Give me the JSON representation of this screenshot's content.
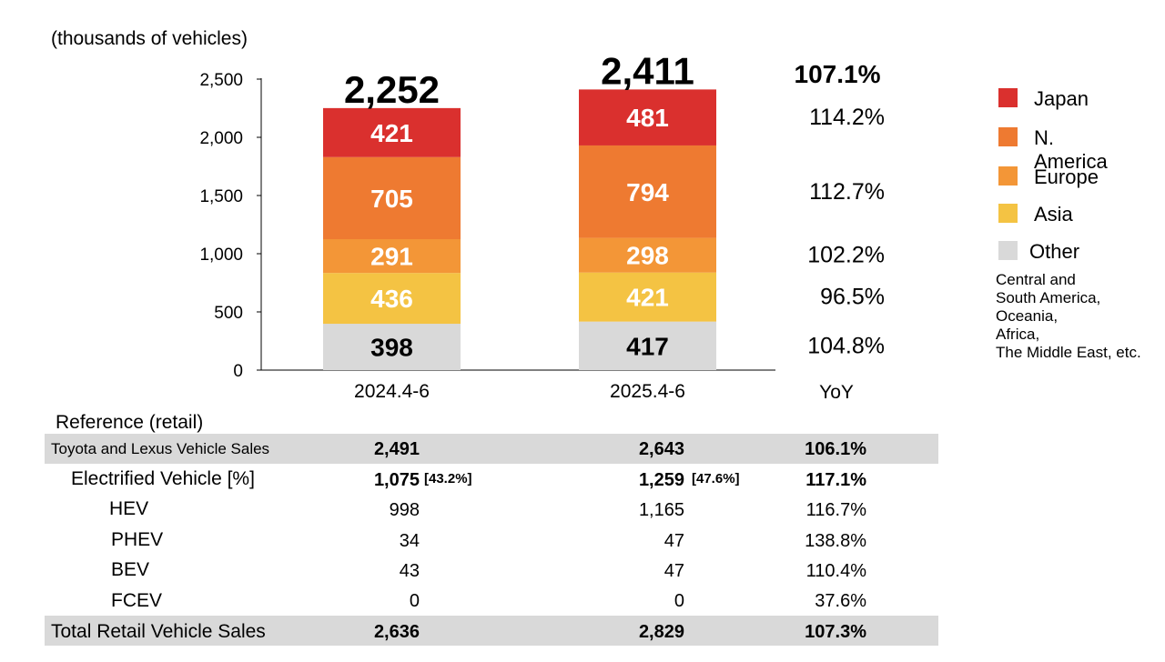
{
  "units_label": "(thousands of vehicles)",
  "chart_data": {
    "type": "bar",
    "stacked": true,
    "categories": [
      "2024.4-6",
      "2025.4-6"
    ],
    "series": [
      {
        "name": "Other",
        "values": [
          398,
          417
        ],
        "color": "#d9d9d9",
        "label_color": "#000000"
      },
      {
        "name": "Asia",
        "values": [
          436,
          421
        ],
        "color": "#f4c343",
        "label_color": "#ffffff"
      },
      {
        "name": "Europe",
        "values": [
          291,
          298
        ],
        "color": "#f39637",
        "label_color": "#ffffff"
      },
      {
        "name": "N. America",
        "values": [
          705,
          794
        ],
        "color": "#ee7a31",
        "label_color": "#ffffff"
      },
      {
        "name": "Japan",
        "values": [
          421,
          481
        ],
        "color": "#da302e",
        "label_color": "#ffffff"
      }
    ],
    "totals": [
      2252,
      2411
    ],
    "total_labels": [
      "2,252",
      "2,411"
    ],
    "yticks": [
      "0",
      "500",
      "1,000",
      "1,500",
      "2,000",
      "2,500"
    ],
    "ylim": [
      0,
      2500
    ],
    "yoy": {
      "header": "YoY",
      "total": "107.1%",
      "by_series": {
        "Japan": "114.2%",
        "N. America": "112.7%",
        "Europe": "102.2%",
        "Asia": "96.5%",
        "Other": "104.8%"
      }
    },
    "legend": [
      "Japan",
      "N. America",
      "Europe",
      "Asia",
      "Other"
    ],
    "legend_position": "right",
    "legend_note": "Central and\nSouth America,\nOceania,\nAfrica,\nThe Middle East, etc."
  },
  "reference": {
    "title": "Reference (retail)",
    "rows": [
      {
        "label": "Toyota and Lexus Vehicle Sales",
        "v2024": "2,491",
        "v2025": "2,643",
        "yoy": "106.1%"
      },
      {
        "label": "Electrified Vehicle [%]",
        "v2024": "1,075",
        "p2024": "[43.2%]",
        "v2025": "1,259",
        "p2025": "[47.6%]",
        "yoy": "117.1%"
      },
      {
        "label": "HEV",
        "v2024": "998",
        "v2025": "1,165",
        "yoy": "116.7%"
      },
      {
        "label": "PHEV",
        "v2024": "34",
        "v2025": "47",
        "yoy": "138.8%"
      },
      {
        "label": "BEV",
        "v2024": "43",
        "v2025": "47",
        "yoy": "110.4%"
      },
      {
        "label": "FCEV",
        "v2024": "0",
        "v2025": "0",
        "yoy": "37.6%"
      },
      {
        "label": "Total Retail Vehicle Sales",
        "v2024": "2,636",
        "v2025": "2,829",
        "yoy": "107.3%"
      }
    ]
  }
}
